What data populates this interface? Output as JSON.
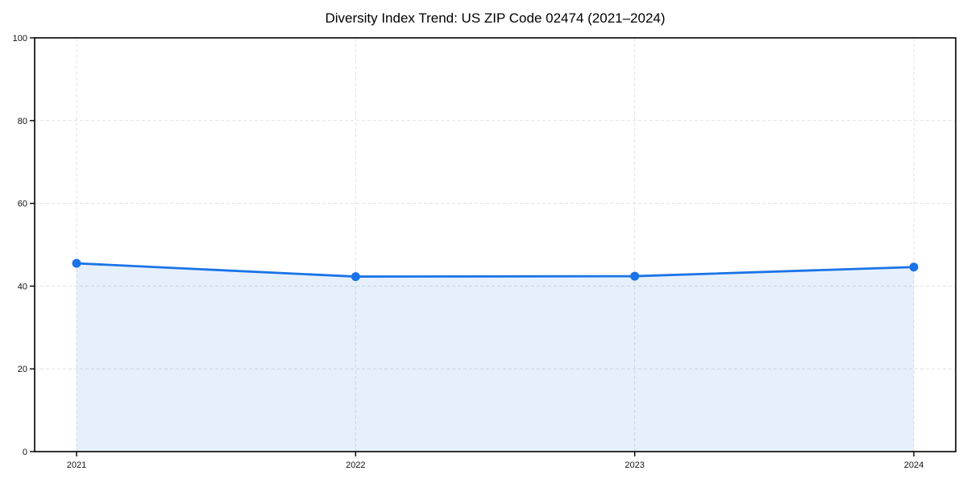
{
  "chart_data": {
    "type": "line",
    "title": "Diversity Index Trend: US ZIP Code 02474 (2021–2024)",
    "x": [
      "2021",
      "2022",
      "2023",
      "2024"
    ],
    "series": [
      {
        "name": "Diversity Index",
        "values": [
          45.5,
          42.3,
          42.4,
          44.6
        ]
      }
    ],
    "xlabel": "",
    "ylabel": "",
    "ylim": [
      0,
      100
    ],
    "yticks": [
      0,
      20,
      40,
      60,
      80,
      100
    ],
    "grid": {
      "visible": true,
      "style": "dashed",
      "axes": "both"
    },
    "legend": {
      "visible": false
    },
    "area_fill": true,
    "markers": true,
    "colors": {
      "line": "#1a73e8",
      "area_fill": "rgba(26,115,232,0.11)",
      "grid": "#e0e0e0",
      "axis": "#000000",
      "background": "#ffffff"
    }
  }
}
